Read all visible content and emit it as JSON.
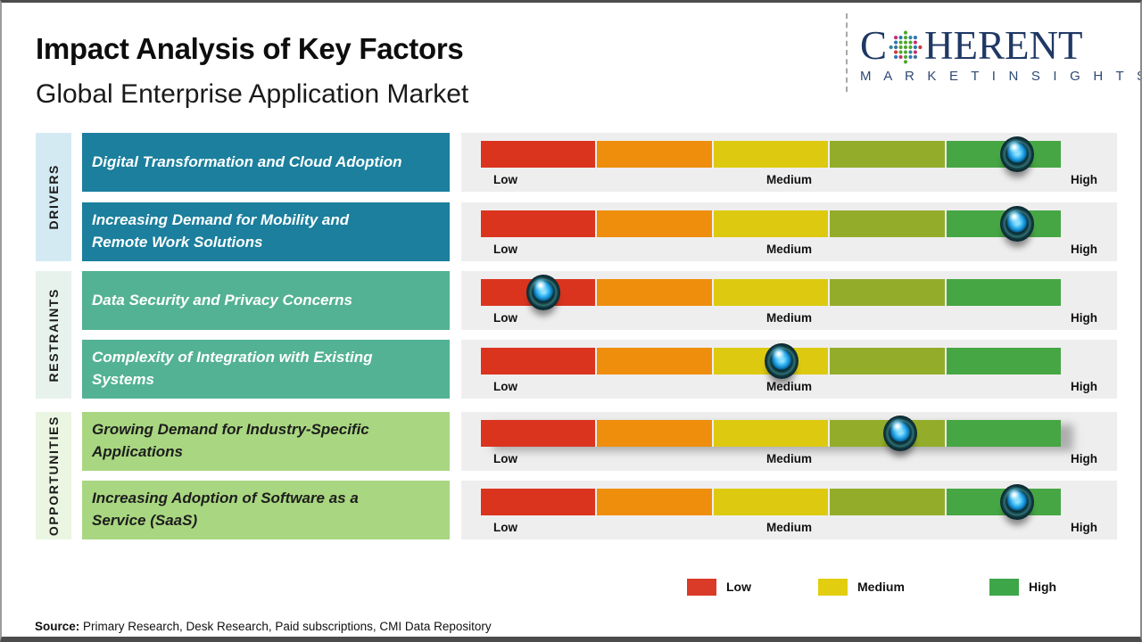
{
  "header": {
    "title": "Impact Analysis of Key Factors",
    "subtitle": "Global Enterprise Application Market"
  },
  "logo": {
    "brand_part1": "C",
    "brand_part2": "HERENT",
    "tagline": "M A R K E T   I N S I G H T S",
    "brand_color": "#1f3864",
    "icon": "globe-dots-icon"
  },
  "chart_data": {
    "type": "heatmap",
    "description": "Impact slider chart: each factor rated on a Low-Medium-High gradient scale with a sphere marker",
    "scale_labels": [
      "Low",
      "Medium",
      "High"
    ],
    "scale_colors": [
      "#da341f",
      "#ee8e0c",
      "#ddca10",
      "#93ad2b",
      "#46a644"
    ],
    "sections": [
      {
        "label": "DRIVERS",
        "strip_color": "#d4eaf3",
        "box_color": "#1b7f9d",
        "text_color": "#ffffff"
      },
      {
        "label": "RESTRAINTS",
        "strip_color": "#e7f2ed",
        "box_color": "#53b293",
        "text_color": "#ffffff"
      },
      {
        "label": "OPPORTUNITIES",
        "strip_color": "#eaf6e2",
        "box_color": "#a9d781",
        "text_color": "#1d1d1d"
      }
    ],
    "rows": [
      {
        "label": "Digital Transformation and Cloud Adoption",
        "section": "DRIVERS",
        "impact": "High",
        "marker_percent": 92.5
      },
      {
        "label": "Increasing Demand for Mobility and\nRemote Work Solutions",
        "section": "DRIVERS",
        "impact": "High",
        "marker_percent": 92.5
      },
      {
        "label": "Data Security and Privacy Concerns",
        "section": "RESTRAINTS",
        "impact": "Low",
        "marker_percent": 10.8
      },
      {
        "label": "Complexity of Integration with Existing\nSystems",
        "section": "RESTRAINTS",
        "impact": "Medium",
        "marker_percent": 51.8
      },
      {
        "label": "Growing Demand for Industry-Specific\nApplications",
        "section": "OPPORTUNITIES",
        "impact": "Medium-High",
        "marker_percent": 72.3
      },
      {
        "label": "Increasing Adoption of Software as a\nService (SaaS)",
        "section": "OPPORTUNITIES",
        "impact": "High",
        "marker_percent": 92.5
      }
    ]
  },
  "legend": {
    "items": [
      {
        "label": "Low",
        "color": "#da3b28"
      },
      {
        "label": "Medium",
        "color": "#e2ce0f"
      },
      {
        "label": "High",
        "color": "#3da648"
      }
    ]
  },
  "source": {
    "prefix": "Source:",
    "text": " Primary Research, Desk Research, Paid subscriptions, CMI Data Repository"
  }
}
